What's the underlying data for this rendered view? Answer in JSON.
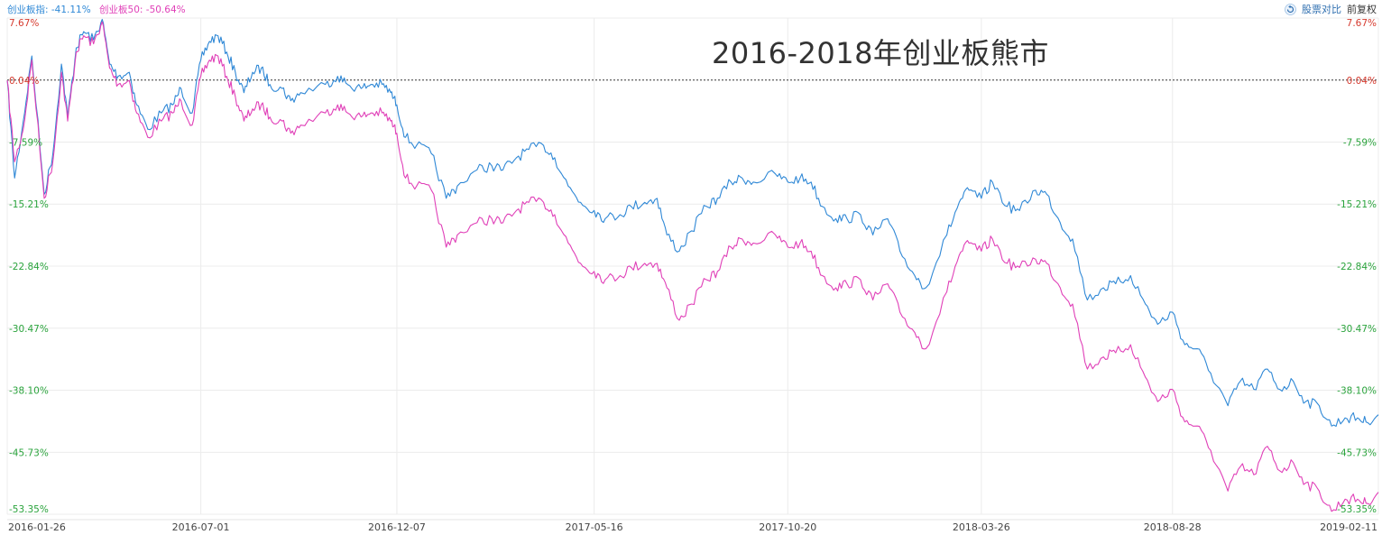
{
  "legend": {
    "series1_label": "创业板指: -41.11%",
    "series2_label": "创业板50: -50.64%"
  },
  "toolbar": {
    "reset_icon": "reset-icon",
    "compare_label": "股票对比",
    "adjust_label": "前复权"
  },
  "colors": {
    "series1": "#2f88d6",
    "series2": "#e040b8",
    "positive": "#d63a2e",
    "negative": "#2aa33c",
    "zero": "#d63a2e",
    "grid": "#ececec"
  },
  "chart_data": {
    "type": "line",
    "title": "2016-2018年创业板熊市",
    "x_range": [
      "2016-01-26",
      "2019-02-11"
    ],
    "x_ticks": [
      "2016-01-26",
      "2016-07-01",
      "2016-12-07",
      "2017-05-16",
      "2017-10-20",
      "2018-03-26",
      "2018-08-28",
      "2019-02-11"
    ],
    "y_range": [
      -53.35,
      7.67
    ],
    "y_ticks": [
      7.67,
      0.04,
      -7.59,
      -15.21,
      -22.84,
      -30.47,
      -38.1,
      -45.73,
      -53.35
    ],
    "y_tick_labels": [
      "7.67%",
      "0.04%",
      "-7.59%",
      "-15.21%",
      "-22.84%",
      "-30.47%",
      "-38.10%",
      "-45.73%",
      "-53.35%"
    ],
    "grid": true,
    "legend_position": "top-left",
    "series": [
      {
        "name": "创业板指",
        "points": [
          [
            "2016-01-26",
            0.0
          ],
          [
            "2016-02-01",
            -12.0
          ],
          [
            "2016-02-08",
            -5.0
          ],
          [
            "2016-02-15",
            3.0
          ],
          [
            "2016-02-25",
            -14.0
          ],
          [
            "2016-03-03",
            -9.0
          ],
          [
            "2016-03-10",
            2.0
          ],
          [
            "2016-03-15",
            -4.5
          ],
          [
            "2016-03-22",
            4.0
          ],
          [
            "2016-03-28",
            6.0
          ],
          [
            "2016-04-05",
            5.0
          ],
          [
            "2016-04-12",
            7.5
          ],
          [
            "2016-04-18",
            2.0
          ],
          [
            "2016-04-25",
            0.5
          ],
          [
            "2016-05-04",
            1.0
          ],
          [
            "2016-05-10",
            -3.0
          ],
          [
            "2016-05-19",
            -6.0
          ],
          [
            "2016-05-30",
            -4.0
          ],
          [
            "2016-06-08",
            -3.0
          ],
          [
            "2016-06-15",
            -1.0
          ],
          [
            "2016-06-24",
            -4.0
          ],
          [
            "2016-07-01",
            2.5
          ],
          [
            "2016-07-08",
            4.8
          ],
          [
            "2016-07-15",
            5.5
          ],
          [
            "2016-07-22",
            3.5
          ],
          [
            "2016-07-29",
            1.0
          ],
          [
            "2016-08-05",
            -1.5
          ],
          [
            "2016-08-12",
            1.0
          ],
          [
            "2016-08-19",
            1.5
          ],
          [
            "2016-08-26",
            -0.5
          ],
          [
            "2016-09-05",
            -1.0
          ],
          [
            "2016-09-12",
            -2.5
          ],
          [
            "2016-09-20",
            -1.5
          ],
          [
            "2016-10-10",
            -0.5
          ],
          [
            "2016-10-20",
            0.5
          ],
          [
            "2016-10-28",
            -0.5
          ],
          [
            "2016-11-08",
            -1.0
          ],
          [
            "2016-11-16",
            -0.5
          ],
          [
            "2016-11-25",
            -0.5
          ],
          [
            "2016-12-02",
            -1.5
          ],
          [
            "2016-12-07",
            -3.0
          ],
          [
            "2016-12-14",
            -7.0
          ],
          [
            "2016-12-23",
            -8.0
          ],
          [
            "2017-01-04",
            -9.0
          ],
          [
            "2017-01-16",
            -14.5
          ],
          [
            "2017-01-25",
            -13.0
          ],
          [
            "2017-02-10",
            -11.0
          ],
          [
            "2017-02-22",
            -10.5
          ],
          [
            "2017-03-03",
            -11.0
          ],
          [
            "2017-03-14",
            -9.5
          ],
          [
            "2017-03-24",
            -8.5
          ],
          [
            "2017-04-05",
            -8.0
          ],
          [
            "2017-04-14",
            -9.5
          ],
          [
            "2017-04-25",
            -13.0
          ],
          [
            "2017-05-05",
            -15.0
          ],
          [
            "2017-05-16",
            -16.0
          ],
          [
            "2017-05-25",
            -17.0
          ],
          [
            "2017-06-06",
            -16.5
          ],
          [
            "2017-06-15",
            -15.5
          ],
          [
            "2017-06-26",
            -15.0
          ],
          [
            "2017-07-06",
            -14.5
          ],
          [
            "2017-07-14",
            -19.0
          ],
          [
            "2017-07-24",
            -21.0
          ],
          [
            "2017-08-03",
            -18.5
          ],
          [
            "2017-08-15",
            -15.5
          ],
          [
            "2017-08-24",
            -14.5
          ],
          [
            "2017-09-04",
            -12.5
          ],
          [
            "2017-09-13",
            -12.0
          ],
          [
            "2017-09-22",
            -12.5
          ],
          [
            "2017-10-10",
            -11.5
          ],
          [
            "2017-10-20",
            -12.5
          ],
          [
            "2017-10-30",
            -12.0
          ],
          [
            "2017-11-08",
            -12.5
          ],
          [
            "2017-11-17",
            -15.5
          ],
          [
            "2017-11-28",
            -17.0
          ],
          [
            "2017-12-07",
            -17.0
          ],
          [
            "2017-12-18",
            -16.5
          ],
          [
            "2017-12-28",
            -19.0
          ],
          [
            "2018-01-09",
            -17.0
          ],
          [
            "2018-01-19",
            -21.0
          ],
          [
            "2018-01-31",
            -24.0
          ],
          [
            "2018-02-09",
            -25.5
          ],
          [
            "2018-02-26",
            -19.0
          ],
          [
            "2018-03-08",
            -15.0
          ],
          [
            "2018-03-16",
            -13.5
          ],
          [
            "2018-03-26",
            -14.5
          ],
          [
            "2018-04-04",
            -12.5
          ],
          [
            "2018-04-16",
            -15.5
          ],
          [
            "2018-04-26",
            -16.0
          ],
          [
            "2018-05-09",
            -13.5
          ],
          [
            "2018-05-18",
            -14.0
          ],
          [
            "2018-05-29",
            -17.5
          ],
          [
            "2018-06-08",
            -19.5
          ],
          [
            "2018-06-20",
            -27.0
          ],
          [
            "2018-07-03",
            -25.5
          ],
          [
            "2018-07-13",
            -25.0
          ],
          [
            "2018-07-25",
            -24.0
          ],
          [
            "2018-08-06",
            -27.5
          ],
          [
            "2018-08-16",
            -30.0
          ],
          [
            "2018-08-28",
            -28.5
          ],
          [
            "2018-09-07",
            -32.5
          ],
          [
            "2018-09-17",
            -33.0
          ],
          [
            "2018-09-28",
            -36.0
          ],
          [
            "2018-10-12",
            -40.0
          ],
          [
            "2018-10-22",
            -37.0
          ],
          [
            "2018-11-02",
            -38.0
          ],
          [
            "2018-11-13",
            -35.5
          ],
          [
            "2018-11-23",
            -38.0
          ],
          [
            "2018-12-04",
            -37.0
          ],
          [
            "2018-12-14",
            -39.5
          ],
          [
            "2018-12-25",
            -40.0
          ],
          [
            "2019-01-04",
            -42.5
          ],
          [
            "2019-01-15",
            -41.5
          ],
          [
            "2019-01-25",
            -41.5
          ],
          [
            "2019-02-01",
            -42.0
          ],
          [
            "2019-02-11",
            -41.11
          ]
        ]
      },
      {
        "name": "创业板50",
        "points": [
          [
            "2016-01-26",
            0.0
          ],
          [
            "2016-02-01",
            -10.0
          ],
          [
            "2016-02-08",
            -6.0
          ],
          [
            "2016-02-15",
            2.5
          ],
          [
            "2016-02-25",
            -14.5
          ],
          [
            "2016-03-03",
            -10.0
          ],
          [
            "2016-03-10",
            1.0
          ],
          [
            "2016-03-15",
            -5.0
          ],
          [
            "2016-03-22",
            3.5
          ],
          [
            "2016-03-28",
            5.5
          ],
          [
            "2016-04-05",
            4.5
          ],
          [
            "2016-04-12",
            7.2
          ],
          [
            "2016-04-18",
            1.5
          ],
          [
            "2016-04-25",
            -0.5
          ],
          [
            "2016-05-04",
            0.0
          ],
          [
            "2016-05-10",
            -4.0
          ],
          [
            "2016-05-19",
            -7.0
          ],
          [
            "2016-05-30",
            -5.0
          ],
          [
            "2016-06-08",
            -4.0
          ],
          [
            "2016-06-15",
            -2.5
          ],
          [
            "2016-06-24",
            -5.5
          ],
          [
            "2016-07-01",
            0.5
          ],
          [
            "2016-07-08",
            2.5
          ],
          [
            "2016-07-15",
            3.0
          ],
          [
            "2016-07-22",
            0.5
          ],
          [
            "2016-07-29",
            -2.0
          ],
          [
            "2016-08-05",
            -5.0
          ],
          [
            "2016-08-12",
            -3.5
          ],
          [
            "2016-08-19",
            -3.0
          ],
          [
            "2016-08-26",
            -4.5
          ],
          [
            "2016-09-05",
            -5.0
          ],
          [
            "2016-09-12",
            -6.5
          ],
          [
            "2016-09-20",
            -5.5
          ],
          [
            "2016-10-10",
            -4.0
          ],
          [
            "2016-10-20",
            -3.0
          ],
          [
            "2016-10-28",
            -4.0
          ],
          [
            "2016-11-08",
            -4.5
          ],
          [
            "2016-11-16",
            -4.0
          ],
          [
            "2016-11-25",
            -4.0
          ],
          [
            "2016-12-02",
            -5.0
          ],
          [
            "2016-12-07",
            -6.5
          ],
          [
            "2016-12-14",
            -12.0
          ],
          [
            "2016-12-23",
            -13.0
          ],
          [
            "2017-01-04",
            -13.5
          ],
          [
            "2017-01-16",
            -20.5
          ],
          [
            "2017-01-25",
            -19.0
          ],
          [
            "2017-02-10",
            -17.5
          ],
          [
            "2017-02-22",
            -17.0
          ],
          [
            "2017-03-03",
            -17.5
          ],
          [
            "2017-03-14",
            -16.0
          ],
          [
            "2017-03-24",
            -15.0
          ],
          [
            "2017-04-05",
            -15.0
          ],
          [
            "2017-04-14",
            -16.5
          ],
          [
            "2017-04-25",
            -20.0
          ],
          [
            "2017-05-05",
            -22.5
          ],
          [
            "2017-05-16",
            -23.5
          ],
          [
            "2017-05-25",
            -24.5
          ],
          [
            "2017-06-06",
            -24.0
          ],
          [
            "2017-06-15",
            -23.0
          ],
          [
            "2017-06-26",
            -22.5
          ],
          [
            "2017-07-06",
            -22.5
          ],
          [
            "2017-07-14",
            -25.5
          ],
          [
            "2017-07-24",
            -29.5
          ],
          [
            "2017-08-03",
            -27.5
          ],
          [
            "2017-08-15",
            -24.5
          ],
          [
            "2017-08-24",
            -23.5
          ],
          [
            "2017-09-04",
            -20.5
          ],
          [
            "2017-09-13",
            -19.5
          ],
          [
            "2017-09-22",
            -20.0
          ],
          [
            "2017-10-10",
            -19.0
          ],
          [
            "2017-10-20",
            -20.5
          ],
          [
            "2017-10-30",
            -20.0
          ],
          [
            "2017-11-08",
            -21.0
          ],
          [
            "2017-11-17",
            -24.0
          ],
          [
            "2017-11-28",
            -25.5
          ],
          [
            "2017-12-07",
            -25.0
          ],
          [
            "2017-12-18",
            -24.5
          ],
          [
            "2017-12-28",
            -27.0
          ],
          [
            "2018-01-09",
            -25.0
          ],
          [
            "2018-01-19",
            -28.5
          ],
          [
            "2018-01-31",
            -31.0
          ],
          [
            "2018-02-09",
            -33.0
          ],
          [
            "2018-02-26",
            -26.0
          ],
          [
            "2018-03-08",
            -21.5
          ],
          [
            "2018-03-16",
            -20.0
          ],
          [
            "2018-03-26",
            -21.0
          ],
          [
            "2018-04-04",
            -19.5
          ],
          [
            "2018-04-16",
            -22.5
          ],
          [
            "2018-04-26",
            -23.0
          ],
          [
            "2018-05-09",
            -22.0
          ],
          [
            "2018-05-18",
            -22.5
          ],
          [
            "2018-05-29",
            -25.5
          ],
          [
            "2018-06-08",
            -27.5
          ],
          [
            "2018-06-20",
            -35.5
          ],
          [
            "2018-07-03",
            -34.0
          ],
          [
            "2018-07-13",
            -33.5
          ],
          [
            "2018-07-25",
            -32.5
          ],
          [
            "2018-08-06",
            -36.5
          ],
          [
            "2018-08-16",
            -39.5
          ],
          [
            "2018-08-28",
            -38.0
          ],
          [
            "2018-09-07",
            -42.0
          ],
          [
            "2018-09-17",
            -42.5
          ],
          [
            "2018-09-28",
            -45.5
          ],
          [
            "2018-10-12",
            -50.5
          ],
          [
            "2018-10-22",
            -47.5
          ],
          [
            "2018-11-02",
            -48.5
          ],
          [
            "2018-11-13",
            -45.0
          ],
          [
            "2018-11-23",
            -48.0
          ],
          [
            "2018-12-04",
            -47.0
          ],
          [
            "2018-12-14",
            -49.5
          ],
          [
            "2018-12-25",
            -50.5
          ],
          [
            "2019-01-04",
            -53.0
          ],
          [
            "2019-01-15",
            -51.5
          ],
          [
            "2019-01-25",
            -51.5
          ],
          [
            "2019-02-01",
            -52.0
          ],
          [
            "2019-02-11",
            -50.64
          ]
        ]
      }
    ]
  }
}
